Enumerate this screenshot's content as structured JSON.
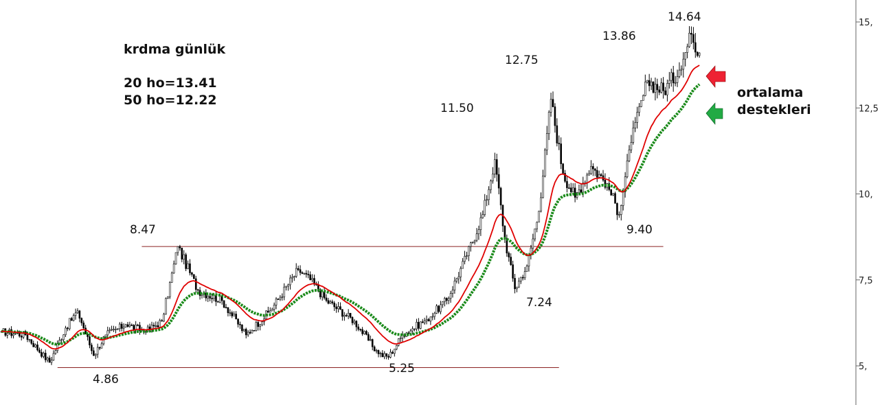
{
  "chart_data": {
    "type": "candlestick",
    "title": "krdma günlük",
    "ylim": [
      4.0,
      15.8
    ],
    "y_ticks": [
      {
        "value": 5.0,
        "label": "5,"
      },
      {
        "value": 7.5,
        "label": "7,5"
      },
      {
        "value": 10.0,
        "label": "10,"
      },
      {
        "value": 12.5,
        "label": "12,5"
      },
      {
        "value": 15.0,
        "label": "15,"
      }
    ],
    "indicators": [
      {
        "name": "20 ho",
        "label": "20 ho=13.41",
        "last_value": 13.41,
        "color": "#e00000"
      },
      {
        "name": "50 ho",
        "label": "50 ho=12.22",
        "last_value": 12.22,
        "color": "#1a8a1a"
      }
    ],
    "price_anchors": [
      {
        "i": 0,
        "price": 6.0
      },
      {
        "i": 12,
        "price": 5.9
      },
      {
        "i": 24,
        "price": 5.1
      },
      {
        "i": 32,
        "price": 6.1
      },
      {
        "i": 38,
        "price": 6.6
      },
      {
        "i": 46,
        "price": 5.3
      },
      {
        "i": 52,
        "price": 5.9
      },
      {
        "i": 62,
        "price": 6.2
      },
      {
        "i": 72,
        "price": 6.0
      },
      {
        "i": 80,
        "price": 6.3
      },
      {
        "i": 88,
        "price": 8.47
      },
      {
        "i": 98,
        "price": 7.2
      },
      {
        "i": 110,
        "price": 6.9
      },
      {
        "i": 122,
        "price": 5.9
      },
      {
        "i": 134,
        "price": 6.6
      },
      {
        "i": 148,
        "price": 7.8
      },
      {
        "i": 154,
        "price": 7.5
      },
      {
        "i": 162,
        "price": 6.9
      },
      {
        "i": 176,
        "price": 6.3
      },
      {
        "i": 188,
        "price": 5.35
      },
      {
        "i": 193,
        "price": 5.25
      },
      {
        "i": 200,
        "price": 5.9
      },
      {
        "i": 212,
        "price": 6.35
      },
      {
        "i": 222,
        "price": 6.9
      },
      {
        "i": 232,
        "price": 8.2
      },
      {
        "i": 240,
        "price": 9.4
      },
      {
        "i": 246,
        "price": 11.0
      },
      {
        "i": 251,
        "price": 8.7
      },
      {
        "i": 256,
        "price": 7.24
      },
      {
        "i": 262,
        "price": 7.9
      },
      {
        "i": 268,
        "price": 9.5
      },
      {
        "i": 274,
        "price": 12.75
      },
      {
        "i": 280,
        "price": 10.6
      },
      {
        "i": 286,
        "price": 9.9
      },
      {
        "i": 294,
        "price": 10.8
      },
      {
        "i": 302,
        "price": 10.3
      },
      {
        "i": 308,
        "price": 9.4
      },
      {
        "i": 314,
        "price": 11.5
      },
      {
        "i": 322,
        "price": 13.3
      },
      {
        "i": 330,
        "price": 13.0
      },
      {
        "i": 338,
        "price": 13.6
      },
      {
        "i": 344,
        "price": 14.64
      },
      {
        "i": 348,
        "price": 14.1
      }
    ],
    "horizontal_lines": [
      {
        "value": 8.47,
        "from_i": 70,
        "to_i": 330
      },
      {
        "value": 4.95,
        "from_i": 28,
        "to_i": 278
      }
    ],
    "annotations": [
      {
        "text": "4.86"
      },
      {
        "text": "8.47"
      },
      {
        "text": "5.25"
      },
      {
        "text": "11.50"
      },
      {
        "text": "12.75"
      },
      {
        "text": "7.24"
      },
      {
        "text": "9.40"
      },
      {
        "text": "13.86"
      },
      {
        "text": "14.64"
      }
    ],
    "support_text": [
      "ortalama",
      "destekleri"
    ],
    "arrow_colors": {
      "red": "#ee2233",
      "green": "#22aa44"
    }
  }
}
